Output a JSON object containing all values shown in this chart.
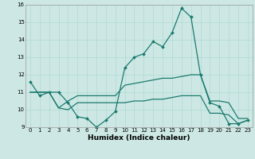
{
  "xlabel": "Humidex (Indice chaleur)",
  "background_color": "#cde8e4",
  "grid_color": "#b0d8d4",
  "line_color": "#1a7a6e",
  "x_values": [
    0,
    1,
    2,
    3,
    4,
    5,
    6,
    7,
    8,
    9,
    10,
    11,
    12,
    13,
    14,
    15,
    16,
    17,
    18,
    19,
    20,
    21,
    22,
    23
  ],
  "line1": [
    11.6,
    10.8,
    11.0,
    11.0,
    10.4,
    9.6,
    9.5,
    9.0,
    9.4,
    9.9,
    12.4,
    13.0,
    13.2,
    13.9,
    13.6,
    14.4,
    15.8,
    15.3,
    12.0,
    10.4,
    10.2,
    9.2,
    9.2,
    9.4
  ],
  "line2": [
    11.0,
    11.0,
    11.0,
    10.1,
    10.5,
    10.8,
    10.8,
    10.8,
    10.8,
    10.8,
    11.4,
    11.5,
    11.6,
    11.7,
    11.8,
    11.8,
    11.9,
    12.0,
    12.0,
    10.5,
    10.5,
    10.4,
    9.5,
    9.5
  ],
  "line3": [
    11.0,
    11.0,
    11.0,
    10.1,
    10.0,
    10.4,
    10.4,
    10.4,
    10.4,
    10.4,
    10.4,
    10.5,
    10.5,
    10.6,
    10.6,
    10.7,
    10.8,
    10.8,
    10.8,
    9.8,
    9.8,
    9.7,
    9.2,
    9.4
  ],
  "ylim": [
    9,
    16
  ],
  "yticks": [
    9,
    10,
    11,
    12,
    13,
    14,
    15,
    16
  ],
  "marker_size": 2.0,
  "line_width": 0.9,
  "tick_fontsize": 5.0,
  "xlabel_fontsize": 6.5
}
